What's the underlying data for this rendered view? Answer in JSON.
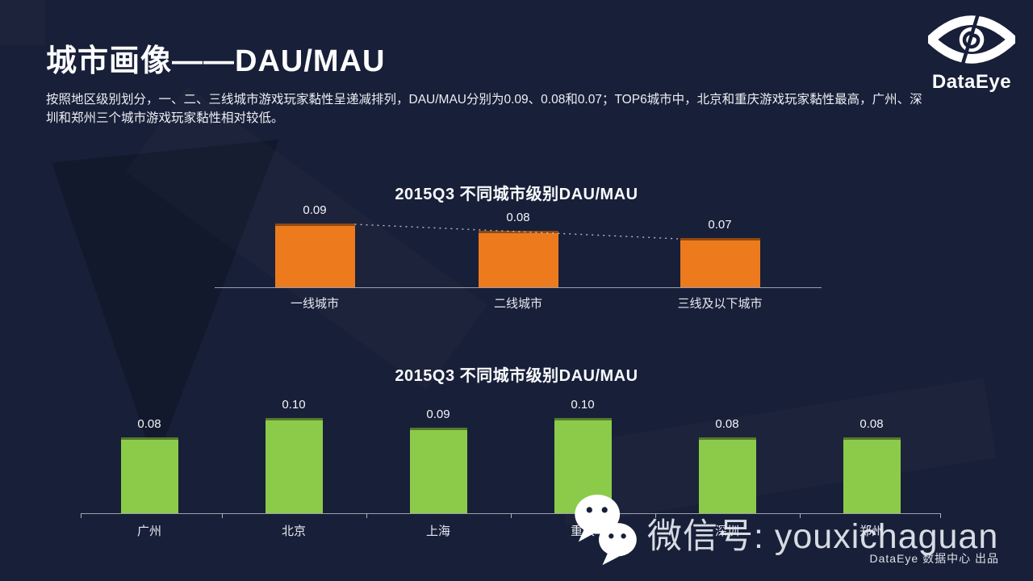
{
  "page": {
    "title": "城市画像——DAU/MAU",
    "description": "按照地区级别划分，一、二、三线城市游戏玩家黏性呈递减排列，DAU/MAU分别为0.09、0.08和0.07；TOP6城市中，北京和重庆游戏玩家黏性最高，广州、深圳和郑州三个城市游戏玩家黏性相对较低。",
    "credit": "DataEye 数据中心 出品"
  },
  "logo": {
    "text": "DataEye",
    "icon": "dataeye-eye-icon"
  },
  "watermark": {
    "icon": "wechat-icon",
    "text": "微信号: youxichaguan"
  },
  "colors": {
    "background": "#181f38",
    "orange_bar": "#ed7b1e",
    "green_bar": "#8ccb4a",
    "axis": "#98a0af",
    "trendline": "#cfd6e4"
  },
  "chart_data": [
    {
      "type": "bar",
      "title": "2015Q3  不同城市级别DAU/MAU",
      "categories": [
        "一线城市",
        "二线城市",
        "三线及以下城市"
      ],
      "values": [
        0.09,
        0.08,
        0.07
      ],
      "value_labels": [
        "0.09",
        "0.08",
        "0.07"
      ],
      "bar_color": "#ed7b1e",
      "xlabel": "",
      "ylabel": "DAU/MAU",
      "ylim": [
        0,
        0.1
      ],
      "grid": false,
      "legend": false,
      "trendline": true,
      "trendline_style": "dotted-white"
    },
    {
      "type": "bar",
      "title": "2015Q3  不同城市级别DAU/MAU",
      "categories": [
        "广州",
        "北京",
        "上海",
        "重庆",
        "深圳",
        "郑州"
      ],
      "values": [
        0.08,
        0.1,
        0.09,
        0.1,
        0.08,
        0.08
      ],
      "value_labels": [
        "0.08",
        "0.10",
        "0.09",
        "0.10",
        "0.08",
        "0.08"
      ],
      "bar_color": "#8ccb4a",
      "xlabel": "",
      "ylabel": "DAU/MAU",
      "ylim": [
        0,
        0.1
      ],
      "grid": false,
      "legend": false,
      "trendline": false
    }
  ]
}
